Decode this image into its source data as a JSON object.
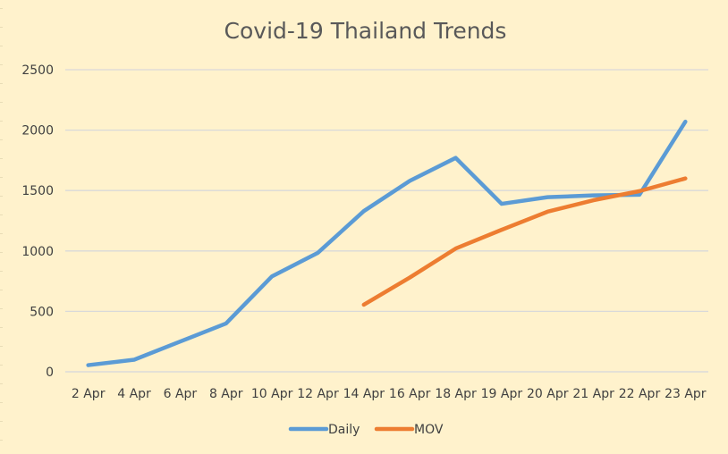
{
  "chart_data": {
    "type": "line",
    "title": "Covid-19 Thailand Trends",
    "xlabel": "",
    "ylabel": "",
    "categories": [
      "2 Apr",
      "4 Apr",
      "6 Apr",
      "8 Apr",
      "10 Apr",
      "12 Apr",
      "14 Apr",
      "16 Apr",
      "18 Apr",
      "19 Apr",
      "20 Apr",
      "21 Apr",
      "22 Apr",
      "23 Apr"
    ],
    "ylim": [
      0,
      2500
    ],
    "yticks": [
      "0",
      "500",
      "1000",
      "1500",
      "2000",
      "2500"
    ],
    "grid": true,
    "legend_position": "bottom",
    "series": [
      {
        "name": "Daily",
        "color": "#5b9bd5",
        "values": [
          55,
          100,
          250,
          400,
          790,
          985,
          1330,
          1580,
          1770,
          1390,
          1445,
          1460,
          1465,
          2070
        ]
      },
      {
        "name": "MOV",
        "color": "#ed7d31",
        "values": [
          null,
          null,
          null,
          null,
          null,
          null,
          555,
          780,
          1020,
          1175,
          1325,
          1420,
          1495,
          1600
        ]
      }
    ]
  }
}
